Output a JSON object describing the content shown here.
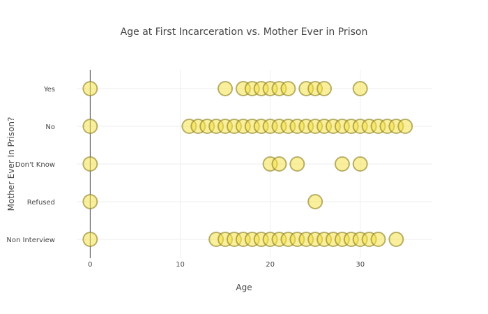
{
  "chart_data": {
    "type": "scatter",
    "title": "Age at First Incarceration vs. Mother Ever in Prison",
    "xlabel": "Age",
    "ylabel": "Mother Ever In Prison?",
    "xlim": [
      -1.5,
      38
    ],
    "x_ticks": [
      0,
      10,
      20,
      30
    ],
    "categories": [
      "Non Interview",
      "Refused",
      "Don't Know",
      "No",
      "Yes"
    ],
    "grid": true,
    "marker_color": "#f5e14b",
    "marker_edge_color": "#8a7e1e",
    "points": [
      {
        "category": "Yes",
        "x": [
          0,
          15,
          17,
          18,
          19,
          20,
          21,
          22,
          24,
          25,
          26,
          30
        ]
      },
      {
        "category": "No",
        "x": [
          0,
          11,
          12,
          13,
          14,
          15,
          16,
          17,
          18,
          19,
          20,
          21,
          22,
          23,
          24,
          25,
          26,
          27,
          28,
          29,
          30,
          31,
          32,
          33,
          34,
          35
        ]
      },
      {
        "category": "Don't Know",
        "x": [
          0,
          20,
          21,
          23,
          28,
          30
        ]
      },
      {
        "category": "Refused",
        "x": [
          0,
          25
        ]
      },
      {
        "category": "Non Interview",
        "x": [
          0,
          14,
          15,
          16,
          17,
          18,
          19,
          20,
          21,
          22,
          23,
          24,
          25,
          26,
          27,
          28,
          29,
          30,
          31,
          32,
          34
        ]
      }
    ]
  }
}
